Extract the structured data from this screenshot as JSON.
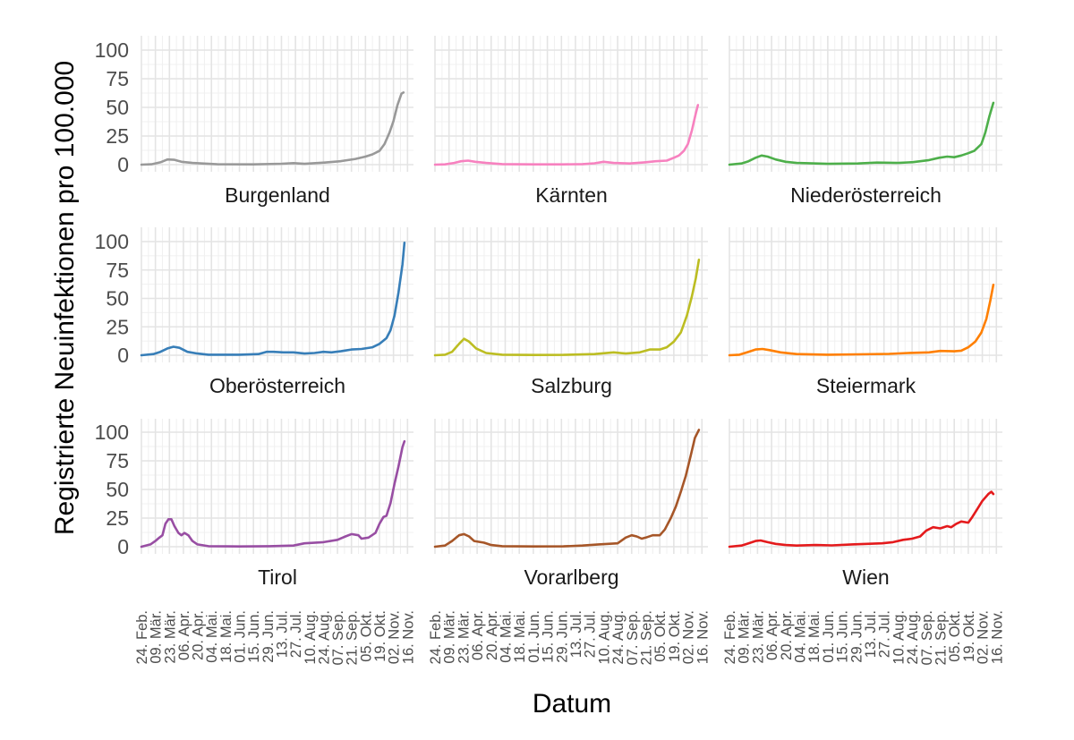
{
  "chart_data": {
    "type": "line",
    "layout": "facet-grid-3x3",
    "xlabel": "Datum",
    "ylabel": "Registrierte Neuinfektionen pro 100.000",
    "ylim": [
      0,
      100
    ],
    "yticks": [
      0,
      25,
      50,
      75,
      100
    ],
    "xlim": [
      "2020-02-24",
      "2020-11-22"
    ],
    "xticks": [
      {
        "date": "2020-02-24",
        "label": "24. Feb."
      },
      {
        "date": "2020-03-09",
        "label": "09. Mär."
      },
      {
        "date": "2020-03-23",
        "label": "23. Mär."
      },
      {
        "date": "2020-04-06",
        "label": "06. Apr."
      },
      {
        "date": "2020-04-20",
        "label": "20. Apr."
      },
      {
        "date": "2020-05-04",
        "label": "04. Mai."
      },
      {
        "date": "2020-05-18",
        "label": "18. Mai."
      },
      {
        "date": "2020-06-01",
        "label": "01. Jun."
      },
      {
        "date": "2020-06-15",
        "label": "15. Jun."
      },
      {
        "date": "2020-06-29",
        "label": "29. Jun."
      },
      {
        "date": "2020-07-13",
        "label": "13. Jul."
      },
      {
        "date": "2020-07-27",
        "label": "27. Jul."
      },
      {
        "date": "2020-08-10",
        "label": "10. Aug."
      },
      {
        "date": "2020-08-24",
        "label": "24. Aug."
      },
      {
        "date": "2020-09-07",
        "label": "07. Sep."
      },
      {
        "date": "2020-09-21",
        "label": "21. Sep."
      },
      {
        "date": "2020-10-05",
        "label": "05. Okt."
      },
      {
        "date": "2020-10-19",
        "label": "19. Okt."
      },
      {
        "date": "2020-11-02",
        "label": "02. Nov."
      },
      {
        "date": "2020-11-16",
        "label": "16. Nov."
      }
    ],
    "grid": true,
    "legend": "none",
    "series": [
      {
        "name": "Burgenland",
        "color": "#999999",
        "points": [
          [
            "2020-02-24",
            0
          ],
          [
            "2020-03-05",
            0.3
          ],
          [
            "2020-03-14",
            2
          ],
          [
            "2020-03-21",
            4.5
          ],
          [
            "2020-03-28",
            4.2
          ],
          [
            "2020-04-04",
            2.5
          ],
          [
            "2020-04-15",
            1.5
          ],
          [
            "2020-04-25",
            1
          ],
          [
            "2020-05-10",
            0.3
          ],
          [
            "2020-06-15",
            0.2
          ],
          [
            "2020-07-13",
            0.8
          ],
          [
            "2020-07-25",
            1.3
          ],
          [
            "2020-08-05",
            0.7
          ],
          [
            "2020-08-25",
            1.8
          ],
          [
            "2020-09-10",
            3
          ],
          [
            "2020-09-25",
            5
          ],
          [
            "2020-10-05",
            7
          ],
          [
            "2020-10-12",
            9
          ],
          [
            "2020-10-19",
            12
          ],
          [
            "2020-10-24",
            18
          ],
          [
            "2020-10-29",
            28
          ],
          [
            "2020-11-02",
            38
          ],
          [
            "2020-11-06",
            52
          ],
          [
            "2020-11-10",
            62
          ],
          [
            "2020-11-12",
            63
          ]
        ]
      },
      {
        "name": "Kärnten",
        "color": "#f781bf",
        "points": [
          [
            "2020-02-24",
            0
          ],
          [
            "2020-03-05",
            0.2
          ],
          [
            "2020-03-14",
            1.5
          ],
          [
            "2020-03-21",
            3
          ],
          [
            "2020-03-28",
            3.5
          ],
          [
            "2020-04-04",
            2.5
          ],
          [
            "2020-04-15",
            1.5
          ],
          [
            "2020-05-01",
            0.5
          ],
          [
            "2020-06-01",
            0.2
          ],
          [
            "2020-07-01",
            0.2
          ],
          [
            "2020-07-20",
            0.5
          ],
          [
            "2020-08-01",
            1.2
          ],
          [
            "2020-08-10",
            2.5
          ],
          [
            "2020-08-20",
            1.5
          ],
          [
            "2020-09-05",
            1
          ],
          [
            "2020-09-20",
            2
          ],
          [
            "2020-10-01",
            3
          ],
          [
            "2020-10-12",
            3.5
          ],
          [
            "2020-10-19",
            6
          ],
          [
            "2020-10-24",
            8
          ],
          [
            "2020-10-29",
            12
          ],
          [
            "2020-11-02",
            18
          ],
          [
            "2020-11-06",
            30
          ],
          [
            "2020-11-10",
            45
          ],
          [
            "2020-11-12",
            52
          ]
        ]
      },
      {
        "name": "Niederösterreich",
        "color": "#4daf4a",
        "points": [
          [
            "2020-02-24",
            0
          ],
          [
            "2020-03-07",
            1
          ],
          [
            "2020-03-14",
            3
          ],
          [
            "2020-03-21",
            6
          ],
          [
            "2020-03-27",
            8
          ],
          [
            "2020-04-02",
            7
          ],
          [
            "2020-04-10",
            4.5
          ],
          [
            "2020-04-20",
            2.5
          ],
          [
            "2020-05-01",
            1.5
          ],
          [
            "2020-06-01",
            0.7
          ],
          [
            "2020-07-01",
            1
          ],
          [
            "2020-07-20",
            1.8
          ],
          [
            "2020-08-10",
            1.5
          ],
          [
            "2020-08-25",
            2.2
          ],
          [
            "2020-09-10",
            4
          ],
          [
            "2020-09-20",
            6
          ],
          [
            "2020-09-28",
            7
          ],
          [
            "2020-10-05",
            6.5
          ],
          [
            "2020-10-12",
            8
          ],
          [
            "2020-10-19",
            10
          ],
          [
            "2020-10-25",
            12
          ],
          [
            "2020-11-01",
            18
          ],
          [
            "2020-11-05",
            28
          ],
          [
            "2020-11-09",
            42
          ],
          [
            "2020-11-13",
            54
          ]
        ]
      },
      {
        "name": "Oberösterreich",
        "color": "#377eb8",
        "points": [
          [
            "2020-02-24",
            0
          ],
          [
            "2020-03-07",
            1
          ],
          [
            "2020-03-14",
            3
          ],
          [
            "2020-03-21",
            6
          ],
          [
            "2020-03-27",
            7.5
          ],
          [
            "2020-04-02",
            6.5
          ],
          [
            "2020-04-10",
            3
          ],
          [
            "2020-04-20",
            1.5
          ],
          [
            "2020-05-01",
            0.5
          ],
          [
            "2020-06-01",
            0.5
          ],
          [
            "2020-06-20",
            1
          ],
          [
            "2020-06-28",
            3
          ],
          [
            "2020-07-05",
            3
          ],
          [
            "2020-07-15",
            2.5
          ],
          [
            "2020-07-25",
            2.5
          ],
          [
            "2020-08-05",
            1.5
          ],
          [
            "2020-08-15",
            2
          ],
          [
            "2020-08-24",
            3
          ],
          [
            "2020-09-01",
            2.5
          ],
          [
            "2020-09-10",
            3.5
          ],
          [
            "2020-09-21",
            5
          ],
          [
            "2020-10-01",
            5.5
          ],
          [
            "2020-10-12",
            7
          ],
          [
            "2020-10-19",
            10
          ],
          [
            "2020-10-26",
            15
          ],
          [
            "2020-10-30",
            22
          ],
          [
            "2020-11-03",
            35
          ],
          [
            "2020-11-07",
            55
          ],
          [
            "2020-11-11",
            80
          ],
          [
            "2020-11-13",
            99
          ]
        ]
      },
      {
        "name": "Salzburg",
        "color": "#bcbd22",
        "points": [
          [
            "2020-02-24",
            0
          ],
          [
            "2020-03-05",
            0.5
          ],
          [
            "2020-03-12",
            3
          ],
          [
            "2020-03-19",
            10
          ],
          [
            "2020-03-24",
            14.5
          ],
          [
            "2020-03-29",
            12
          ],
          [
            "2020-04-05",
            6
          ],
          [
            "2020-04-15",
            2
          ],
          [
            "2020-05-01",
            0.5
          ],
          [
            "2020-06-01",
            0.2
          ],
          [
            "2020-07-01",
            0.3
          ],
          [
            "2020-08-01",
            1
          ],
          [
            "2020-08-20",
            2.5
          ],
          [
            "2020-09-01",
            1.5
          ],
          [
            "2020-09-15",
            2.5
          ],
          [
            "2020-09-25",
            5
          ],
          [
            "2020-10-05",
            5
          ],
          [
            "2020-10-12",
            7
          ],
          [
            "2020-10-19",
            12
          ],
          [
            "2020-10-26",
            20
          ],
          [
            "2020-11-01",
            35
          ],
          [
            "2020-11-06",
            52
          ],
          [
            "2020-11-10",
            68
          ],
          [
            "2020-11-13",
            84
          ]
        ]
      },
      {
        "name": "Steiermark",
        "color": "#ff7f00",
        "points": [
          [
            "2020-02-24",
            0
          ],
          [
            "2020-03-05",
            0.5
          ],
          [
            "2020-03-14",
            3
          ],
          [
            "2020-03-21",
            5
          ],
          [
            "2020-03-28",
            5.5
          ],
          [
            "2020-04-04",
            4.5
          ],
          [
            "2020-04-15",
            2.5
          ],
          [
            "2020-05-01",
            1
          ],
          [
            "2020-06-01",
            0.5
          ],
          [
            "2020-07-01",
            0.8
          ],
          [
            "2020-08-01",
            1.2
          ],
          [
            "2020-08-20",
            2
          ],
          [
            "2020-09-10",
            2.5
          ],
          [
            "2020-09-21",
            3.8
          ],
          [
            "2020-10-05",
            3.5
          ],
          [
            "2020-10-12",
            4
          ],
          [
            "2020-10-19",
            7
          ],
          [
            "2020-10-26",
            12
          ],
          [
            "2020-11-01",
            20
          ],
          [
            "2020-11-06",
            32
          ],
          [
            "2020-11-10",
            48
          ],
          [
            "2020-11-13",
            62
          ]
        ]
      },
      {
        "name": "Tirol",
        "color": "#984ea3",
        "points": [
          [
            "2020-02-24",
            0
          ],
          [
            "2020-03-04",
            2
          ],
          [
            "2020-03-09",
            5
          ],
          [
            "2020-03-13",
            8
          ],
          [
            "2020-03-16",
            10
          ],
          [
            "2020-03-19",
            20
          ],
          [
            "2020-03-22",
            24
          ],
          [
            "2020-03-25",
            24
          ],
          [
            "2020-03-28",
            18
          ],
          [
            "2020-04-01",
            12
          ],
          [
            "2020-04-04",
            10
          ],
          [
            "2020-04-07",
            12
          ],
          [
            "2020-04-11",
            10
          ],
          [
            "2020-04-15",
            5
          ],
          [
            "2020-04-20",
            2
          ],
          [
            "2020-05-01",
            0.5
          ],
          [
            "2020-06-01",
            0.2
          ],
          [
            "2020-07-01",
            0.5
          ],
          [
            "2020-07-25",
            1
          ],
          [
            "2020-08-05",
            3
          ],
          [
            "2020-08-24",
            4
          ],
          [
            "2020-09-07",
            6
          ],
          [
            "2020-09-15",
            9
          ],
          [
            "2020-09-21",
            11
          ],
          [
            "2020-09-28",
            10
          ],
          [
            "2020-10-01",
            7
          ],
          [
            "2020-10-08",
            8
          ],
          [
            "2020-10-15",
            12
          ],
          [
            "2020-10-19",
            20
          ],
          [
            "2020-10-23",
            26
          ],
          [
            "2020-10-26",
            27
          ],
          [
            "2020-10-30",
            38
          ],
          [
            "2020-11-03",
            55
          ],
          [
            "2020-11-07",
            70
          ],
          [
            "2020-11-11",
            87
          ],
          [
            "2020-11-13",
            92
          ]
        ]
      },
      {
        "name": "Vorarlberg",
        "color": "#a65628",
        "points": [
          [
            "2020-02-24",
            0
          ],
          [
            "2020-03-05",
            1
          ],
          [
            "2020-03-12",
            5
          ],
          [
            "2020-03-19",
            10
          ],
          [
            "2020-03-24",
            11
          ],
          [
            "2020-03-29",
            9
          ],
          [
            "2020-04-03",
            5
          ],
          [
            "2020-04-13",
            3.5
          ],
          [
            "2020-04-20",
            1.5
          ],
          [
            "2020-05-01",
            0.5
          ],
          [
            "2020-06-01",
            0.2
          ],
          [
            "2020-07-01",
            0.3
          ],
          [
            "2020-07-20",
            1
          ],
          [
            "2020-08-05",
            2
          ],
          [
            "2020-08-24",
            3
          ],
          [
            "2020-09-01",
            8
          ],
          [
            "2020-09-07",
            10
          ],
          [
            "2020-09-12",
            9
          ],
          [
            "2020-09-17",
            7
          ],
          [
            "2020-09-21",
            8
          ],
          [
            "2020-09-28",
            10
          ],
          [
            "2020-10-05",
            10
          ],
          [
            "2020-10-10",
            15
          ],
          [
            "2020-10-16",
            25
          ],
          [
            "2020-10-21",
            35
          ],
          [
            "2020-10-26",
            48
          ],
          [
            "2020-10-31",
            62
          ],
          [
            "2020-11-05",
            80
          ],
          [
            "2020-11-09",
            95
          ],
          [
            "2020-11-13",
            102
          ]
        ]
      },
      {
        "name": "Wien",
        "color": "#e41a1c",
        "points": [
          [
            "2020-02-24",
            0
          ],
          [
            "2020-03-07",
            1
          ],
          [
            "2020-03-14",
            3
          ],
          [
            "2020-03-21",
            5
          ],
          [
            "2020-03-26",
            5.5
          ],
          [
            "2020-04-02",
            4
          ],
          [
            "2020-04-10",
            2.5
          ],
          [
            "2020-04-20",
            1.5
          ],
          [
            "2020-05-01",
            1
          ],
          [
            "2020-05-20",
            1.5
          ],
          [
            "2020-06-05",
            1.2
          ],
          [
            "2020-06-25",
            2
          ],
          [
            "2020-07-10",
            2.5
          ],
          [
            "2020-07-25",
            3
          ],
          [
            "2020-08-05",
            4
          ],
          [
            "2020-08-15",
            6
          ],
          [
            "2020-08-24",
            7
          ],
          [
            "2020-09-01",
            9
          ],
          [
            "2020-09-07",
            14
          ],
          [
            "2020-09-14",
            17
          ],
          [
            "2020-09-21",
            16
          ],
          [
            "2020-09-28",
            18
          ],
          [
            "2020-10-02",
            17
          ],
          [
            "2020-10-07",
            20
          ],
          [
            "2020-10-12",
            22
          ],
          [
            "2020-10-19",
            21
          ],
          [
            "2020-10-23",
            26
          ],
          [
            "2020-10-28",
            33
          ],
          [
            "2020-11-02",
            40
          ],
          [
            "2020-11-08",
            46
          ],
          [
            "2020-11-11",
            48
          ],
          [
            "2020-11-13",
            46
          ]
        ]
      }
    ]
  }
}
